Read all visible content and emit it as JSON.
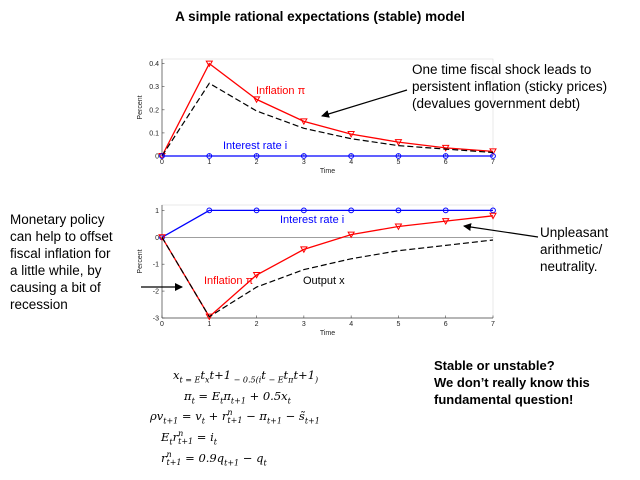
{
  "title": "A simple rational expectations (stable) model",
  "annotations": {
    "top_right": [
      "One time fiscal shock leads to",
      "persistent inflation (sticky prices)",
      "(devalues government debt)"
    ],
    "left": [
      "Monetary policy",
      "can help to offset",
      "fiscal inflation for",
      "a little while, by",
      "causing a bit of",
      "recession"
    ],
    "right": [
      "Unpleasant",
      "arithmetic/",
      "neutrality."
    ],
    "stable": [
      "Stable or unstable?",
      "We don’t really know this",
      "fundamental question!"
    ]
  },
  "equations": [
    [
      "x",
      "t",
      "",
      " = E",
      "t",
      "x",
      "t+1",
      " − 0.5(i",
      "t",
      " − E",
      "t",
      "π",
      "t+1",
      ")"
    ],
    [
      "π",
      "t",
      " = E",
      "t",
      "π",
      "t+1",
      " + 0.5x",
      "t"
    ],
    [
      "ρv",
      "t+1",
      " = v",
      "t",
      " + r",
      "n t+1",
      " − π",
      "t+1",
      " − s̃",
      "t+1"
    ],
    [
      "E",
      "t",
      "r",
      "n t+1",
      " = i",
      "t"
    ],
    [
      "r",
      "n t+1",
      " = 0.9q",
      "t+1",
      " − q",
      "t"
    ]
  ],
  "equation_text": [
    "x_t = E_t x_{t+1} − 0.5(i_t − E_t π_{t+1})",
    "π_t = E_t π_{t+1} + 0.5x_t",
    "ρv_{t+1} = v_t + r^n_{t+1} − π_{t+1} − s̃_{t+1}",
    "E_t r^n_{t+1} = i_t",
    "r^n_{t+1} = 0.9q_{t+1} − q_t"
  ],
  "colors": {
    "inflation": "#ff0000",
    "interest": "#0000ff",
    "output": "#000000"
  },
  "chart_data": [
    {
      "type": "line",
      "title": "",
      "xlabel": "Time",
      "ylabel": "Percent",
      "xlim": [
        0,
        7
      ],
      "ylim": [
        0,
        0.42
      ],
      "x": [
        0,
        1,
        2,
        3,
        4,
        5,
        6,
        7
      ],
      "xticks": [
        "0",
        "1",
        "2",
        "3",
        "4",
        "5",
        "6",
        "7"
      ],
      "yticks": [
        "0",
        "0.1",
        "0.2",
        "0.3",
        "0.4"
      ],
      "series": [
        {
          "name": "Inflation π",
          "color": "#ff0000",
          "style": "solid",
          "marker": "triangle-down",
          "values": [
            0,
            0.4,
            0.245,
            0.15,
            0.095,
            0.06,
            0.035,
            0.02
          ]
        },
        {
          "name": "Output",
          "color": "#000000",
          "style": "dashed",
          "marker": "none",
          "values": [
            0,
            0.315,
            0.195,
            0.12,
            0.075,
            0.045,
            0.03,
            0.015
          ]
        },
        {
          "name": "Interest rate i",
          "color": "#0000ff",
          "style": "solid",
          "marker": "circle",
          "values": [
            0,
            0,
            0,
            0,
            0,
            0,
            0,
            0
          ]
        }
      ],
      "labels": {
        "inflation": "Inflation π",
        "interest": "Interest rate i"
      }
    },
    {
      "type": "line",
      "title": "",
      "xlabel": "Time",
      "ylabel": "Percent",
      "xlim": [
        0,
        7
      ],
      "ylim": [
        -3,
        1.2
      ],
      "x": [
        0,
        1,
        2,
        3,
        4,
        5,
        6,
        7
      ],
      "xticks": [
        "0",
        "1",
        "2",
        "3",
        "4",
        "5",
        "6",
        "7"
      ],
      "yticks": [
        "-3",
        "-2",
        "-1",
        "0",
        "1"
      ],
      "series": [
        {
          "name": "Interest rate i",
          "color": "#0000ff",
          "style": "solid",
          "marker": "circle",
          "values": [
            0,
            1,
            1,
            1,
            1,
            1,
            1,
            1
          ]
        },
        {
          "name": "Inflation π",
          "color": "#ff0000",
          "style": "solid",
          "marker": "triangle-down",
          "values": [
            0,
            -2.95,
            -1.4,
            -0.45,
            0.1,
            0.4,
            0.6,
            0.8
          ]
        },
        {
          "name": "Output x",
          "color": "#000000",
          "style": "dashed",
          "marker": "none",
          "values": [
            0,
            -2.95,
            -1.85,
            -1.2,
            -0.8,
            -0.5,
            -0.3,
            -0.1
          ]
        }
      ],
      "labels": {
        "inflation": "Inflation π",
        "interest": "Interest rate i",
        "output": "Output x"
      }
    }
  ]
}
